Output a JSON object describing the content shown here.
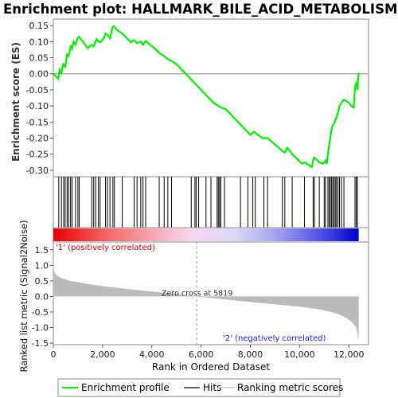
{
  "chart_data": {
    "type": "line",
    "title": "Enrichment plot: HALLMARK_BILE_ACID_METABOLISM",
    "es_panel": {
      "ylabel": "Enrichment score (ES)",
      "ylim": [
        -0.32,
        0.17
      ],
      "yticks": [
        -0.3,
        -0.25,
        -0.2,
        -0.15,
        -0.1,
        -0.05,
        0.0,
        0.05,
        0.1,
        0.15
      ],
      "ytick_labels": [
        "-0.30",
        "-0.25",
        "-0.20",
        "-0.15",
        "-0.10",
        "-0.05",
        "0.00",
        "0.05",
        "0.10",
        "0.15"
      ],
      "series": [
        {
          "name": "Enrichment profile",
          "color": "#00ee00",
          "x": [
            0,
            200,
            260,
            330,
            400,
            480,
            560,
            620,
            700,
            760,
            820,
            900,
            980,
            1050,
            1200,
            1400,
            1560,
            1640,
            1720,
            1760,
            1830,
            1900,
            2050,
            2120,
            2200,
            2300,
            2400,
            2460,
            2600,
            2800,
            3000,
            3150,
            3280,
            3400,
            3550,
            3640,
            3750,
            3900,
            4100,
            4300,
            4500,
            4650,
            4800,
            5000,
            5500,
            6000,
            6500,
            6700,
            6800,
            7000,
            7500,
            8000,
            8150,
            8300,
            8500,
            8700,
            9000,
            9300,
            9400,
            9500,
            9700,
            9900,
            10100,
            10200,
            10500,
            10550,
            10600,
            10800,
            10950,
            11000,
            11050,
            11100,
            11150,
            11200,
            11250,
            11300,
            11350,
            11400,
            11450,
            11500,
            11560,
            11620,
            11700,
            11800,
            11900,
            12000,
            12100,
            12200,
            12250,
            12300,
            12350,
            12400
          ],
          "y": [
            0.0,
            -0.015,
            0.012,
            0.002,
            0.03,
            0.022,
            0.06,
            0.055,
            0.085,
            0.078,
            0.1,
            0.09,
            0.11,
            0.115,
            0.1,
            0.08,
            0.09,
            0.085,
            0.1,
            0.108,
            0.1,
            0.098,
            0.11,
            0.125,
            0.12,
            0.11,
            0.145,
            0.148,
            0.135,
            0.125,
            0.11,
            0.098,
            0.105,
            0.095,
            0.1,
            0.09,
            0.102,
            0.092,
            0.08,
            0.065,
            0.055,
            0.045,
            0.04,
            0.03,
            -0.01,
            -0.05,
            -0.09,
            -0.1,
            -0.105,
            -0.11,
            -0.15,
            -0.19,
            -0.18,
            -0.19,
            -0.2,
            -0.2,
            -0.22,
            -0.24,
            -0.245,
            -0.23,
            -0.25,
            -0.265,
            -0.28,
            -0.275,
            -0.29,
            -0.27,
            -0.26,
            -0.275,
            -0.28,
            -0.275,
            -0.27,
            -0.28,
            -0.25,
            -0.22,
            -0.2,
            -0.17,
            -0.16,
            -0.155,
            -0.145,
            -0.135,
            -0.12,
            -0.1,
            -0.09,
            -0.08,
            -0.085,
            -0.09,
            -0.1,
            -0.105,
            -0.04,
            -0.03,
            -0.05,
            0.003
          ]
        }
      ]
    },
    "hits_panel": {
      "series_name": "Hits",
      "hit_ranks": [
        220,
        330,
        420,
        480,
        560,
        620,
        700,
        760,
        900,
        1000,
        1050,
        1560,
        1640,
        1720,
        1830,
        1900,
        2120,
        2200,
        2300,
        2420,
        2480,
        2800,
        3280,
        3400,
        3550,
        3640,
        3750,
        4300,
        4500,
        4650,
        4800,
        5600,
        5750,
        5800,
        5900,
        6200,
        6400,
        6650,
        6700,
        6750,
        6800,
        6950,
        7600,
        7900,
        8100,
        8200,
        8550,
        8700,
        9300,
        9400,
        9700,
        10200,
        10550,
        10600,
        10800,
        11000,
        11050,
        11150,
        11200,
        11250,
        11300,
        11350,
        11400,
        11450,
        11500,
        11560,
        11620,
        11700,
        11800,
        12250,
        12300,
        12350
      ]
    },
    "rank_panel": {
      "series_name": "Ranking metric scores",
      "ylabel": "Ranked list metric (Signal2Noise)",
      "xlabel": "Rank in Ordered Dataset",
      "ylim": [
        -1.55,
        1.75
      ],
      "yticks": [
        -1.5,
        -1.0,
        -0.5,
        0.0,
        0.5,
        1.0,
        1.5
      ],
      "ytick_labels": [
        "-1.5",
        "-1.0",
        "-0.5",
        "0.0",
        "0.5",
        "1.0",
        "1.5"
      ],
      "xlim": [
        0,
        12800
      ],
      "xticks": [
        0,
        2000,
        4000,
        6000,
        8000,
        10000,
        12000
      ],
      "xtick_labels": [
        "0",
        "2,000",
        "4,000",
        "6,000",
        "8,000",
        "10,000",
        "12,000"
      ],
      "x": [
        0,
        30,
        100,
        300,
        600,
        1000,
        2000,
        3000,
        4000,
        5000,
        5819,
        7000,
        8000,
        9000,
        10000,
        10800,
        11400,
        11800,
        12100,
        12300,
        12400
      ],
      "y": [
        1.05,
        0.8,
        0.7,
        0.6,
        0.52,
        0.45,
        0.33,
        0.24,
        0.16,
        0.08,
        0.0,
        -0.1,
        -0.18,
        -0.25,
        -0.33,
        -0.42,
        -0.52,
        -0.65,
        -0.8,
        -1.0,
        -1.4
      ],
      "zero_cross_rank": 5819,
      "zero_cross_label": "Zero cross at 5819",
      "pos_label": "'1' (positively correlated)",
      "neg_label": "'2' (negatively correlated)"
    },
    "legend": {
      "placement": "bottom",
      "items": [
        {
          "label": "Enrichment profile",
          "color": "#00ee00"
        },
        {
          "label": "Hits",
          "color": "#000000"
        },
        {
          "label": "Ranking metric scores",
          "color": "#bbbbbb"
        }
      ]
    }
  }
}
